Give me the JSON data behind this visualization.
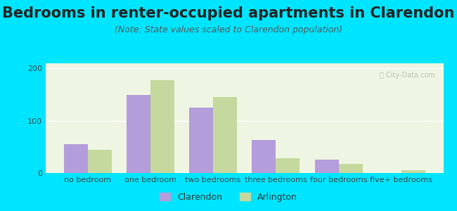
{
  "title": "Bedrooms in renter-occupied apartments in Clarendon",
  "subtitle": "(Note: State values scaled to Clarendon population)",
  "categories": [
    "no bedroom",
    "one bedroom",
    "two bedrooms",
    "three bedrooms",
    "four bedrooms",
    "five+ bedrooms"
  ],
  "clarendon_values": [
    55,
    150,
    125,
    63,
    25,
    0
  ],
  "arlington_values": [
    45,
    178,
    145,
    28,
    18,
    5
  ],
  "clarendon_color": "#b39ddb",
  "arlington_color": "#c5d89d",
  "background_outer": "#00e5ff",
  "background_inner_top": "#e8f5e9",
  "background_inner_bottom": "#f9fbe7",
  "ylim": [
    0,
    210
  ],
  "yticks": [
    0,
    100,
    200
  ],
  "bar_width": 0.38,
  "legend_clarendon": "Clarendon",
  "legend_arlington": "Arlington",
  "title_fontsize": 15,
  "subtitle_fontsize": 9,
  "axis_label_fontsize": 8,
  "legend_fontsize": 9
}
